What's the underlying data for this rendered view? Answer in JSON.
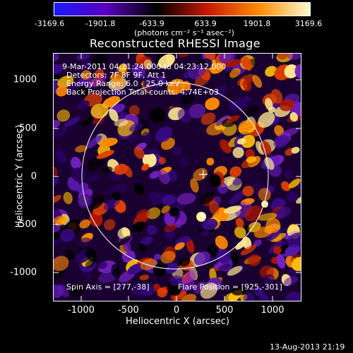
{
  "colorbar": {
    "ticks": [
      "-3169.6",
      "-1901.8",
      "-633.9",
      "633.9",
      "1901.8",
      "3169.6"
    ],
    "units": "(photons cm⁻² s⁻¹ asec⁻²)",
    "colors": [
      "#1a1aff",
      "#5a00c0",
      "#000000",
      "#c81800",
      "#ff8c00",
      "#fff8d0"
    ]
  },
  "title": "Reconstructed RHESSI Image",
  "info": {
    "line1": "9-Mar-2011 04:21:24.000 to 04:23:12.000",
    "line2": "Detectors: 7F 8F 9F, Att 1",
    "line3": "Energy Range: 6.0 - 25.0 keV",
    "line4": "Back Projection    Total counts: 4.74E+03",
    "spin_axis": "Spin Axis = [277,-38]",
    "flare_position": "Flare Position = [925,-301]"
  },
  "axes": {
    "xlabel": "Heliocentric X (arcsec)",
    "ylabel": "Heliocentric Y (arcsec)",
    "xticks": [
      "-1000",
      "-500",
      "0",
      "500",
      "1000"
    ],
    "yticks": [
      "1000",
      "500",
      "0",
      "-500",
      "-1000"
    ]
  },
  "footer": "13-Aug-2013 21:19"
}
